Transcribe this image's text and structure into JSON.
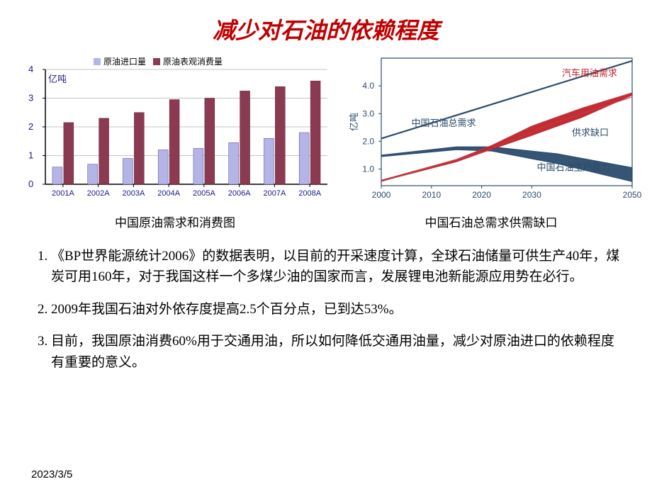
{
  "title": "减少对石油的依赖程度",
  "chart_left": {
    "type": "bar",
    "legend": [
      {
        "label": "原油进口量",
        "color": "#b4b4e6"
      },
      {
        "label": "原油表观消费量",
        "color": "#8b3a52"
      }
    ],
    "ylabel": "亿吨",
    "y_ticks": [
      0,
      1,
      2,
      3,
      4
    ],
    "categories": [
      "2001A",
      "2002A",
      "2003A",
      "2004A",
      "2005A",
      "2006A",
      "2007A",
      "2008A"
    ],
    "series1": [
      0.6,
      0.7,
      0.9,
      1.2,
      1.25,
      1.45,
      1.6,
      1.8
    ],
    "series2": [
      2.15,
      2.3,
      2.5,
      2.95,
      3.0,
      3.25,
      3.4,
      3.6
    ],
    "grid_color": "#8a8a8a",
    "axis_color": "#000000",
    "tick_font_size": 11,
    "label_font_size": 13,
    "legend_font_size": 12,
    "caption": "中国原油需求和消费图"
  },
  "chart_right": {
    "type": "line-area",
    "ylabel": "亿吨",
    "y_ticks": [
      "1.0",
      "2.0",
      "3.0",
      "4.0"
    ],
    "x_ticks": [
      "2000",
      "2010",
      "2020",
      "2030",
      "2050"
    ],
    "labels": {
      "total_demand": "中国石油总需求",
      "car_demand": "汽车用油需求",
      "gap": "供求缺口",
      "capacity": "中国石油生产能力"
    },
    "colors": {
      "total_demand": "#2b4b6b",
      "car_demand_line": "#c04040",
      "car_demand_fill": "#c0202a",
      "capacity": "#2b4b6b",
      "capacity_fill": "#2b4b6b",
      "axis": "#2b4b6b",
      "grid": "#c8c8d0"
    },
    "tick_font_size": 12,
    "label_font_size": 13,
    "caption": "中国石油总需求供需缺口"
  },
  "bullets": [
    "《BP世界能源统计2006》的数据表明，以目前的开采速度计算，全球石油储量可供生产40年，煤炭可用160年，对于我国这样一个多煤少油的国家而言，发展锂电池新能源应用势在必行。",
    "2009年我国石油对外依存度提高2.5个百分点，已到达53%。",
    "目前，我国原油消费60%用于交通用油，所以如何降低交通用油量，减少对原油进口的依赖程度有重要的意义。"
  ],
  "date": "2023/3/5"
}
